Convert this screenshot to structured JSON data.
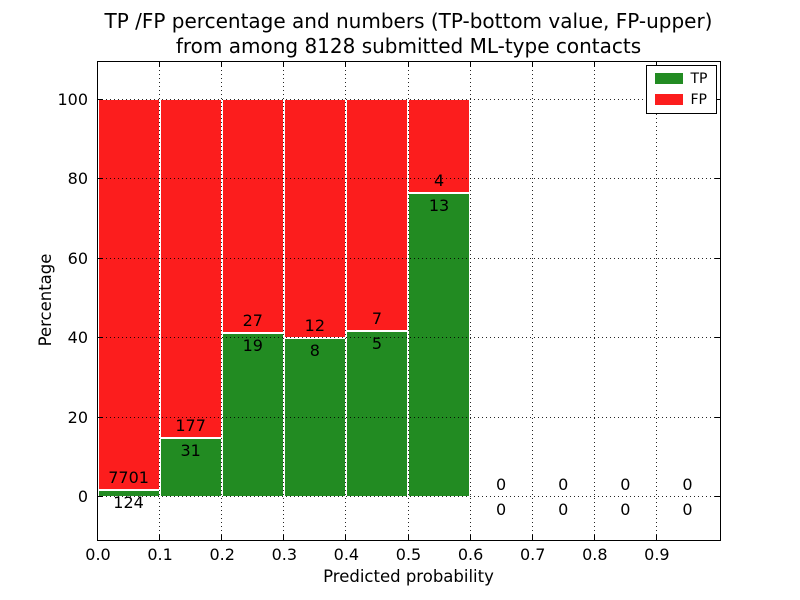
{
  "chart_data": {
    "type": "bar",
    "stacked": true,
    "title_line1": "TP /FP percentage and numbers (TP-bottom value, FP-upper)",
    "title_line2": "from among 8128 submitted ML-type contacts",
    "xlabel": "Predicted probability",
    "ylabel": "Percentage",
    "total_submitted_contacts": 8128,
    "bin_starts": [
      0.0,
      0.1,
      0.2,
      0.3,
      0.4,
      0.5,
      0.6,
      0.7,
      0.8,
      0.9
    ],
    "bin_width": 0.1,
    "series": [
      {
        "name": "TP",
        "color": "#228B22",
        "counts": [
          124,
          31,
          19,
          8,
          5,
          13,
          0,
          0,
          0,
          0
        ]
      },
      {
        "name": "FP",
        "color": "#FC1D1D",
        "counts": [
          7701,
          177,
          27,
          12,
          7,
          4,
          0,
          0,
          0,
          0
        ]
      }
    ],
    "tp_percentages": [
      1.58,
      14.9,
      41.3,
      40.0,
      41.67,
      76.47,
      null,
      null,
      null,
      null
    ],
    "bar_total_percent": 100,
    "x_ticks": [
      "0.0",
      "0.1",
      "0.2",
      "0.3",
      "0.4",
      "0.5",
      "0.6",
      "0.7",
      "0.8",
      "0.9"
    ],
    "x_tick_values": [
      0.0,
      0.1,
      0.2,
      0.3,
      0.4,
      0.5,
      0.6,
      0.7,
      0.8,
      0.9
    ],
    "y_ticks": [
      "0",
      "20",
      "40",
      "60",
      "80",
      "100"
    ],
    "y_tick_values": [
      0,
      20,
      40,
      60,
      80,
      100
    ],
    "xlim": [
      0.0,
      1.0
    ],
    "ylim": [
      -10.5,
      109.5
    ],
    "grid": {
      "style": "dotted",
      "color": "#000000",
      "above_bars": true
    },
    "bar_edge_color": "#FFFFFF",
    "background": "#FFFFFF",
    "legend": {
      "position": "upper right",
      "entries": [
        {
          "label": "TP",
          "color": "#228B22"
        },
        {
          "label": "FP",
          "color": "#FC1D1D"
        }
      ]
    }
  }
}
